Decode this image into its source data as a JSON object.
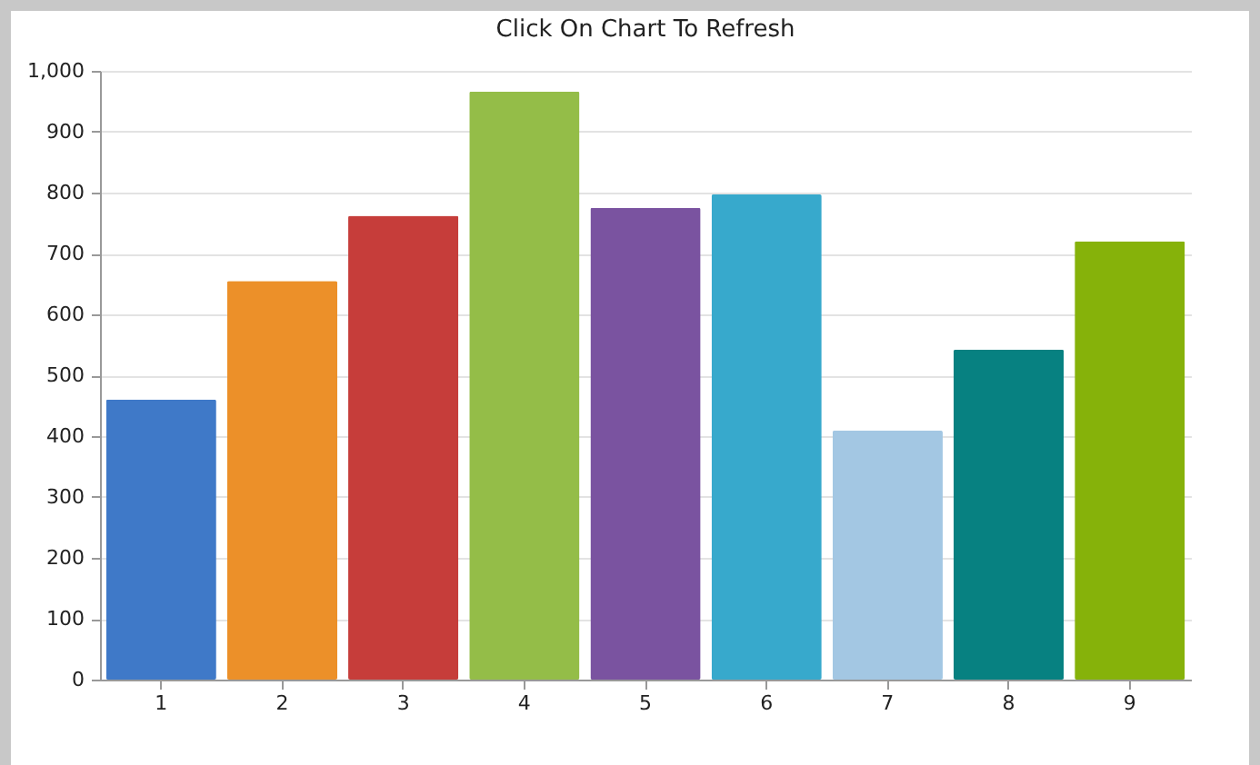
{
  "chart_data": {
    "type": "bar",
    "title": "Click On Chart To Refresh",
    "categories": [
      "1",
      "2",
      "3",
      "4",
      "5",
      "6",
      "7",
      "8",
      "9"
    ],
    "values": [
      460,
      655,
      762,
      966,
      775,
      797,
      409,
      542,
      720
    ],
    "colors": [
      "#3f79c8",
      "#ec9029",
      "#c63d3a",
      "#94bd48",
      "#7a53a0",
      "#37a9cc",
      "#a3c7e3",
      "#078181",
      "#86b20a"
    ],
    "ylim": [
      0,
      1000
    ],
    "yticks": [
      0,
      100,
      200,
      300,
      400,
      500,
      600,
      700,
      800,
      900,
      {
        "value": 1000,
        "label": "1,000"
      }
    ],
    "grid": "y"
  }
}
